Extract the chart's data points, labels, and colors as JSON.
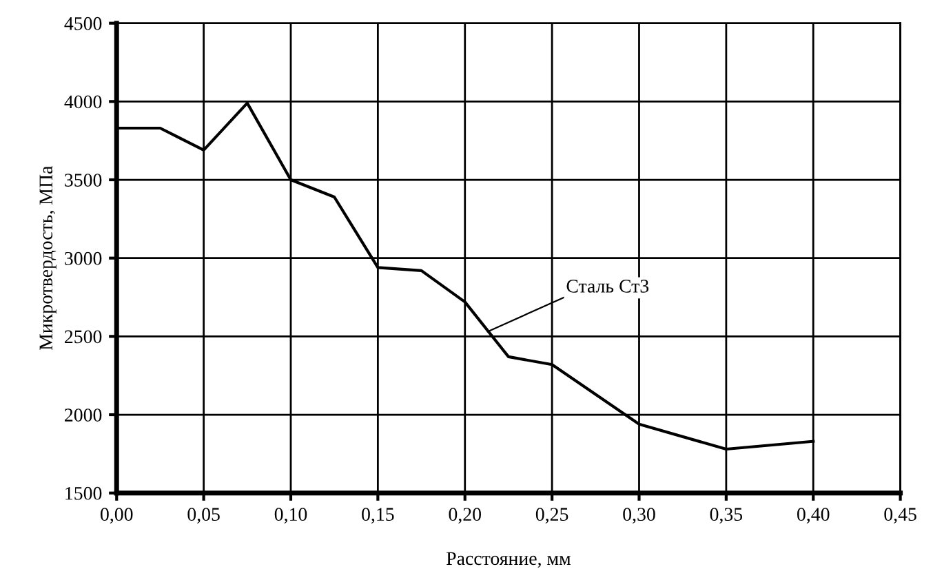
{
  "chart_data": {
    "type": "line",
    "xlabel": "Расстояние, мм",
    "ylabel": "Микротвердость, МПа",
    "x": [
      0,
      0.025,
      0.05,
      0.075,
      0.1,
      0.125,
      0.15,
      0.175,
      0.2,
      0.225,
      0.25,
      0.3,
      0.35,
      0.4
    ],
    "series": [
      {
        "color": "#000000",
        "values": [
          3830,
          3830,
          3690,
          3990,
          3500,
          3390,
          2940,
          2920,
          2720,
          2370,
          2320,
          1940,
          1780,
          1830
        ]
      }
    ],
    "annotations": [
      {
        "text": "Сталь Ст3",
        "x": 0.213,
        "y": 2530
      }
    ],
    "xlim": [
      0,
      0.45
    ],
    "ylim": [
      1500,
      4500
    ],
    "xticks": [
      {
        "value": 0,
        "label": "0,00"
      },
      {
        "value": 0.05,
        "label": "0,05"
      },
      {
        "value": 0.1,
        "label": "0,10"
      },
      {
        "value": 0.15,
        "label": "0,15"
      },
      {
        "value": 0.2,
        "label": "0,20"
      },
      {
        "value": 0.25,
        "label": "0,25"
      },
      {
        "value": 0.3,
        "label": "0,30"
      },
      {
        "value": 0.35,
        "label": "0,35"
      },
      {
        "value": 0.4,
        "label": "0,40"
      },
      {
        "value": 0.45,
        "label": "0,45"
      }
    ],
    "yticks": [
      1500,
      2000,
      2500,
      3000,
      3500,
      4000,
      4500
    ],
    "grid": true,
    "legend": false,
    "marker": "none",
    "line_style": "solid"
  }
}
